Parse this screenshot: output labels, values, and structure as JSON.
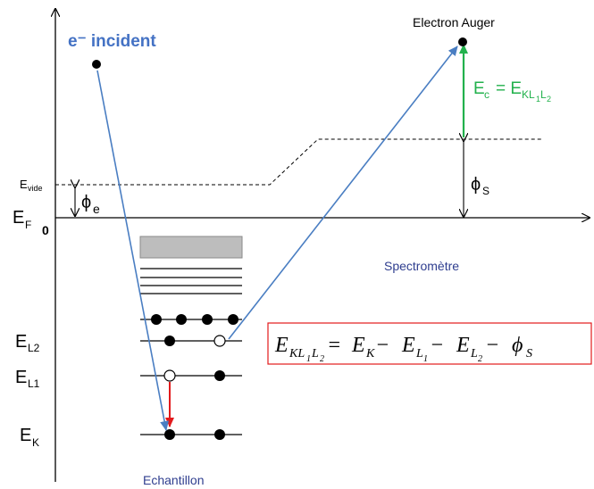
{
  "labels": {
    "incident": "e⁻ incident",
    "auger": "Electron Auger",
    "e_vide": "E",
    "e_vide_sub": "vide",
    "e_f": "E",
    "e_f_sub": "F",
    "zero": "0",
    "phi_e": "ϕ",
    "phi_e_sub": "e",
    "phi_s": "ϕ",
    "phi_s_sub": "S",
    "ec": "E",
    "ec_sub": "c",
    "ekll": "= E",
    "ekll_sub": "KL",
    "ekll_sub1": "1",
    "ekll_l": "L",
    "ekll_sub2": "2",
    "spectrometre": "Spectromètre",
    "echantillon": "Echantillon",
    "el2": "E",
    "el2_sub": "L2",
    "el1": "E",
    "el1_sub": "L1",
    "ek": "E",
    "ek_sub": "K"
  },
  "formula": {
    "lhs": "E",
    "lhs_sub_kl": "KL",
    "lhs_sub_1": "1",
    "lhs_sub_l": "L",
    "lhs_sub_2": "2",
    "eq": " = ",
    "ek": "E",
    "ek_sub": "K",
    "minus1": " − ",
    "el1": "E",
    "el1_sub_l": "L",
    "el1_sub_1": "1",
    "minus2": " − ",
    "el2": "E",
    "el2_sub_l": "L",
    "el2_sub_2": "2",
    "minus3": " − ",
    "phi": "ϕ",
    "phi_sub": "S"
  },
  "colors": {
    "blue_arrow": "#4a7ec2",
    "blue_text": "#4472c4",
    "green": "#22b14c",
    "red": "#e31a1c",
    "box_border": "#e31a1c",
    "band": "#bdbdbd",
    "navy_text": "#2f3e8f"
  }
}
